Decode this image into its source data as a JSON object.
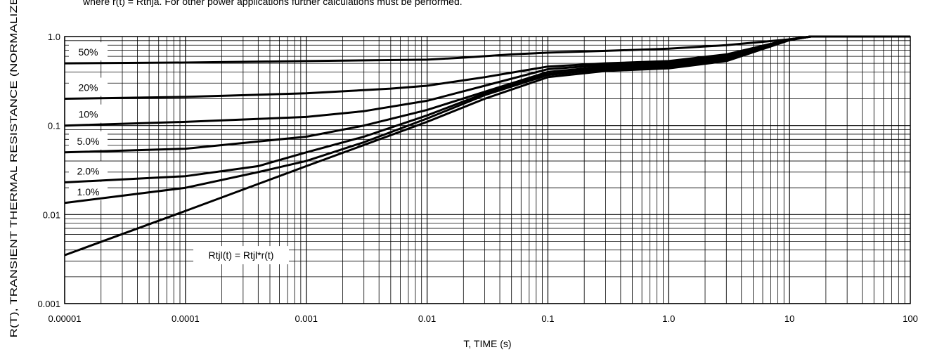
{
  "header_note": "where r(t) = Rthja. For other power applications further calculations must be performed.",
  "chart_data": {
    "type": "line",
    "title": "",
    "xlabel": "T, TIME (s)",
    "ylabel": "R(T), TRANSIENT THERMAL RESISTANCE (NORMALIZED)",
    "xscale": "log",
    "yscale": "log",
    "xlim": [
      1e-05,
      100
    ],
    "ylim": [
      0.001,
      1.0
    ],
    "grid": true,
    "x_tick_labels": [
      "0.00001",
      "0.0001",
      "0.001",
      "0.01",
      "0.1",
      "1.0",
      "10",
      "100"
    ],
    "y_tick_labels": [
      "0.001",
      "0.01",
      "0.1",
      "1.0"
    ],
    "annotation": "Rtjl(t) = Rtjl*r(t)",
    "series": [
      {
        "name": "50%",
        "x": [
          1e-05,
          0.0001,
          0.001,
          0.01,
          0.02,
          0.05,
          0.1,
          0.3,
          1,
          3,
          10,
          15,
          100
        ],
        "y": [
          0.5,
          0.51,
          0.53,
          0.55,
          0.58,
          0.63,
          0.66,
          0.69,
          0.73,
          0.8,
          0.93,
          1.0,
          1.0
        ]
      },
      {
        "name": "20%",
        "x": [
          1e-05,
          0.0001,
          0.001,
          0.005,
          0.01,
          0.03,
          0.1,
          0.3,
          1,
          3,
          10,
          15,
          100
        ],
        "y": [
          0.2,
          0.21,
          0.23,
          0.26,
          0.28,
          0.35,
          0.46,
          0.5,
          0.53,
          0.63,
          0.93,
          1.0,
          1.0
        ]
      },
      {
        "name": "10%",
        "x": [
          1e-05,
          0.0001,
          0.001,
          0.003,
          0.01,
          0.03,
          0.1,
          0.3,
          1,
          3,
          10,
          15,
          100
        ],
        "y": [
          0.1,
          0.11,
          0.125,
          0.145,
          0.19,
          0.28,
          0.43,
          0.48,
          0.51,
          0.6,
          0.93,
          1.0,
          1.0
        ]
      },
      {
        "name": "5.0%",
        "x": [
          1e-05,
          0.0001,
          0.001,
          0.003,
          0.01,
          0.03,
          0.1,
          0.3,
          1,
          3,
          10,
          15,
          100
        ],
        "y": [
          0.05,
          0.055,
          0.075,
          0.1,
          0.15,
          0.24,
          0.4,
          0.46,
          0.49,
          0.58,
          0.92,
          1.0,
          1.0
        ]
      },
      {
        "name": "2.0%",
        "x": [
          1e-05,
          0.0001,
          0.0004,
          0.001,
          0.003,
          0.01,
          0.03,
          0.1,
          0.3,
          1,
          3,
          10,
          15,
          100
        ],
        "y": [
          0.023,
          0.027,
          0.035,
          0.05,
          0.075,
          0.13,
          0.23,
          0.38,
          0.44,
          0.47,
          0.56,
          0.92,
          1.0,
          1.0
        ]
      },
      {
        "name": "1.0%",
        "x": [
          1e-05,
          0.0001,
          0.0004,
          0.001,
          0.003,
          0.01,
          0.03,
          0.1,
          0.3,
          1,
          3,
          10,
          15,
          100
        ],
        "y": [
          0.0135,
          0.02,
          0.03,
          0.04,
          0.065,
          0.12,
          0.22,
          0.37,
          0.43,
          0.46,
          0.55,
          0.92,
          1.0,
          1.0
        ]
      },
      {
        "name": "",
        "x": [
          1e-05,
          0.0001,
          0.001,
          0.01,
          0.03,
          0.1,
          0.3,
          1,
          3,
          10,
          15,
          100
        ],
        "y": [
          0.0035,
          0.011,
          0.035,
          0.11,
          0.2,
          0.35,
          0.41,
          0.44,
          0.53,
          0.91,
          1.0,
          1.0
        ]
      }
    ]
  }
}
